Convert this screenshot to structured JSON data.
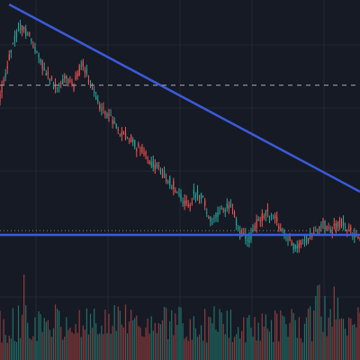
{
  "theme": {
    "background": "#161a25",
    "grid": "#232733",
    "up_color": "#26a69a",
    "down_color": "#ef5350",
    "up_volume_color": "#1f6f66",
    "down_volume_color": "#8e3b3b",
    "trendline_color": "#3b5bdb",
    "dashed_line_color": "#8a8f9c",
    "dotted_line_color": "#7a8f3a"
  },
  "chart_data": {
    "type": "candlestick",
    "title": "",
    "xlabel": "",
    "ylabel": "",
    "ylim": [
      0,
      100
    ],
    "volume_ylim": [
      0,
      100
    ],
    "grid": true,
    "anchors": [
      [
        0,
        68
      ],
      [
        5,
        82
      ],
      [
        10,
        92
      ],
      [
        15,
        90
      ],
      [
        20,
        83
      ],
      [
        25,
        76
      ],
      [
        30,
        72
      ],
      [
        35,
        74
      ],
      [
        40,
        72
      ],
      [
        45,
        80
      ],
      [
        50,
        70
      ],
      [
        55,
        64
      ],
      [
        60,
        60
      ],
      [
        65,
        56
      ],
      [
        70,
        54
      ],
      [
        75,
        50
      ],
      [
        80,
        47
      ],
      [
        85,
        44
      ],
      [
        90,
        40
      ],
      [
        95,
        36
      ],
      [
        100,
        31
      ],
      [
        103,
        30
      ],
      [
        105,
        34
      ],
      [
        110,
        33
      ],
      [
        112,
        28
      ],
      [
        115,
        25
      ],
      [
        120,
        29
      ],
      [
        125,
        30
      ],
      [
        130,
        20
      ],
      [
        135,
        18
      ],
      [
        140,
        25
      ],
      [
        145,
        28
      ],
      [
        150,
        25
      ],
      [
        155,
        20
      ],
      [
        160,
        15
      ],
      [
        165,
        18
      ],
      [
        170,
        21
      ],
      [
        175,
        24
      ],
      [
        180,
        22
      ],
      [
        185,
        24
      ],
      [
        190,
        22
      ],
      [
        195,
        18
      ]
    ],
    "candle_count": 196,
    "overlays": [
      {
        "kind": "trendline",
        "from": [
          5,
          100
        ],
        "to": [
          195,
          35
        ]
      },
      {
        "kind": "horizontal",
        "value": 20
      },
      {
        "kind": "horizontal-dashed",
        "value": 72
      },
      {
        "kind": "horizontal-dotted",
        "value": 21.5
      }
    ]
  }
}
